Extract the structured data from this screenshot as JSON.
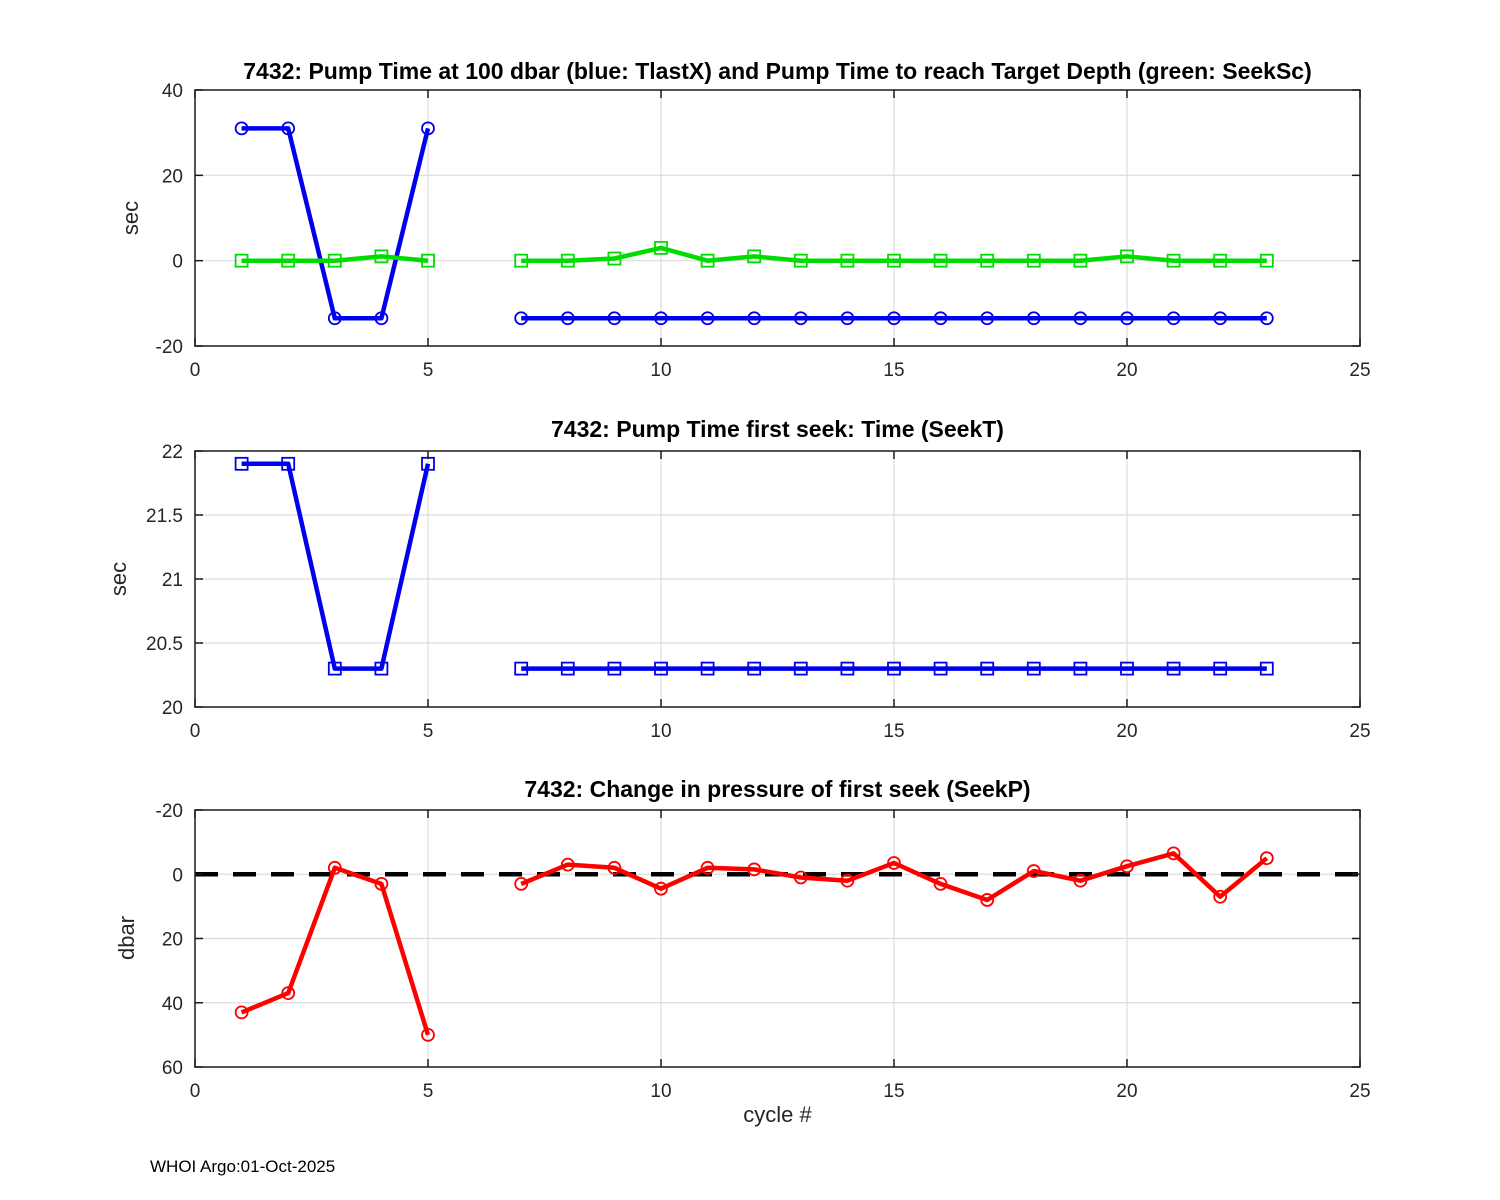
{
  "figure": {
    "footer": "WHOI Argo:01-Oct-2025",
    "background": "#ffffff"
  },
  "chart_data": [
    {
      "type": "line",
      "title": "7432:  Pump Time at 100 dbar (blue: TlastX) and Pump Time to reach Target Depth (green: SeekSc)",
      "ylabel": "sec",
      "xlabel": "",
      "xlim": [
        0,
        25
      ],
      "ylim": [
        -20,
        40
      ],
      "y_reversed": false,
      "xticks": [
        0,
        5,
        10,
        15,
        20,
        25
      ],
      "yticks": [
        -20,
        0,
        20,
        40
      ],
      "grid": true,
      "x": [
        1,
        2,
        3,
        4,
        5,
        6,
        7,
        8,
        9,
        10,
        11,
        12,
        13,
        14,
        15,
        16,
        17,
        18,
        19,
        20,
        21,
        22,
        23
      ],
      "series": [
        {
          "name": "TlastX",
          "color": "#0000EE",
          "marker": "circle",
          "values": [
            31,
            31,
            -13.5,
            -13.5,
            31,
            null,
            -13.5,
            -13.5,
            -13.5,
            -13.5,
            -13.5,
            -13.5,
            -13.5,
            -13.5,
            -13.5,
            -13.5,
            -13.5,
            -13.5,
            -13.5,
            -13.5,
            -13.5,
            -13.5,
            -13.5
          ]
        },
        {
          "name": "SeekSc",
          "color": "#00DC00",
          "marker": "square",
          "values": [
            0,
            0,
            0,
            1,
            0,
            null,
            0,
            0,
            0.5,
            3,
            0,
            1,
            0,
            0,
            0,
            0,
            0,
            0,
            0,
            1,
            0,
            0,
            0
          ]
        }
      ]
    },
    {
      "type": "line",
      "title": "7432: Pump Time first seek: Time (SeekT)",
      "ylabel": "sec",
      "xlabel": "",
      "xlim": [
        0,
        25
      ],
      "ylim": [
        20,
        22
      ],
      "y_reversed": false,
      "xticks": [
        0,
        5,
        10,
        15,
        20,
        25
      ],
      "yticks": [
        20,
        20.5,
        21,
        21.5,
        22
      ],
      "grid": true,
      "x": [
        1,
        2,
        3,
        4,
        5,
        6,
        7,
        8,
        9,
        10,
        11,
        12,
        13,
        14,
        15,
        16,
        17,
        18,
        19,
        20,
        21,
        22,
        23
      ],
      "series": [
        {
          "name": "SeekT",
          "color": "#0000EE",
          "marker": "square",
          "values": [
            21.9,
            21.9,
            20.3,
            20.3,
            21.9,
            null,
            20.3,
            20.3,
            20.3,
            20.3,
            20.3,
            20.3,
            20.3,
            20.3,
            20.3,
            20.3,
            20.3,
            20.3,
            20.3,
            20.3,
            20.3,
            20.3,
            20.3
          ]
        }
      ]
    },
    {
      "type": "line",
      "title": "7432: Change in pressure of first seek (SeekP)",
      "ylabel": "dbar",
      "xlabel": "cycle #",
      "xlim": [
        0,
        25
      ],
      "ylim": [
        -20,
        60
      ],
      "y_reversed": true,
      "xticks": [
        0,
        5,
        10,
        15,
        20,
        25
      ],
      "yticks": [
        -20,
        0,
        20,
        40,
        60
      ],
      "grid": true,
      "zero_line": {
        "value": 0,
        "style": "dashed",
        "color": "#000000"
      },
      "x": [
        1,
        2,
        3,
        4,
        5,
        6,
        7,
        8,
        9,
        10,
        11,
        12,
        13,
        14,
        15,
        16,
        17,
        18,
        19,
        20,
        21,
        22,
        23
      ],
      "series": [
        {
          "name": "SeekP",
          "color": "#FF0000",
          "marker": "circle",
          "values": [
            43,
            37,
            -2,
            3,
            50,
            null,
            3,
            -3,
            -2,
            4.5,
            -2,
            -1.5,
            1,
            2,
            -3.5,
            3,
            8,
            -1,
            2,
            -2.5,
            -6.5,
            7,
            -5
          ]
        }
      ]
    }
  ]
}
